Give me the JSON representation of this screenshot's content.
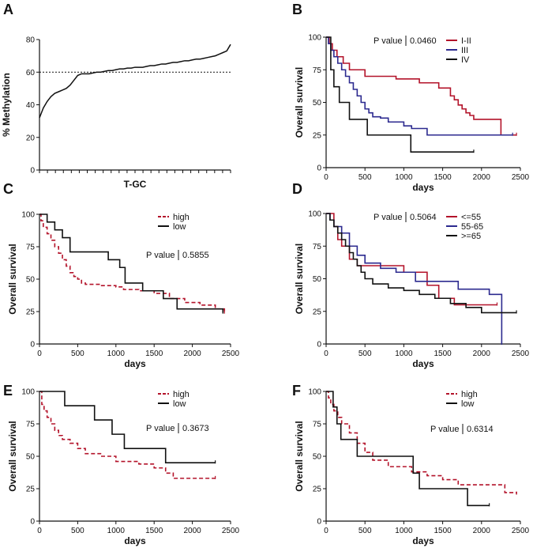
{
  "chart_data": [
    {
      "panel": "A",
      "type": "line",
      "xlabel": "T-GC",
      "ylabel": "% Methylation",
      "ylim": [
        0,
        80
      ],
      "yticks": [
        0,
        20,
        40,
        60,
        80
      ],
      "reference_line": 60,
      "x": [
        0,
        2,
        4,
        6,
        8,
        10,
        12,
        14,
        16,
        18,
        20,
        22,
        24,
        26,
        28,
        30,
        32,
        34,
        36,
        38,
        40,
        42,
        44,
        46,
        48,
        50,
        52,
        54,
        56,
        58,
        60,
        62,
        64,
        66,
        68,
        70,
        72,
        74,
        76,
        78,
        80,
        82,
        84,
        86,
        88,
        90,
        92,
        94,
        96,
        98,
        100
      ],
      "values": [
        32,
        38,
        42,
        45,
        47,
        48,
        49,
        50,
        52,
        55,
        58,
        59,
        59,
        59,
        59.5,
        60,
        60,
        60.5,
        61,
        61,
        61.5,
        62,
        62,
        62.5,
        62.5,
        63,
        63,
        63,
        63.5,
        64,
        64,
        64.5,
        65,
        65,
        65.5,
        66,
        66,
        66.5,
        67,
        67,
        67.5,
        68,
        68,
        68.5,
        69,
        69.5,
        70,
        71,
        72,
        73,
        77
      ]
    },
    {
      "panel": "B",
      "type": "line",
      "xlabel": "days",
      "ylabel": "Overall survival",
      "xlim": [
        0,
        2500
      ],
      "ylim": [
        0,
        100
      ],
      "xticks": [
        0,
        500,
        1000,
        1500,
        2000,
        2500
      ],
      "yticks": [
        0,
        25,
        50,
        75,
        100
      ],
      "p_label": "P value",
      "p_value": "0.0460",
      "series": [
        {
          "name": "I-II",
          "color": "#b3132a",
          "dash": false,
          "x": [
            0,
            40,
            80,
            140,
            220,
            300,
            500,
            900,
            1200,
            1450,
            1600,
            1650,
            1700,
            1750,
            1800,
            1850,
            1900,
            2050,
            2250,
            2450
          ],
          "y": [
            100,
            95,
            90,
            85,
            80,
            75,
            70,
            68,
            65,
            61,
            55,
            52,
            48,
            45,
            42,
            40,
            37,
            37,
            25,
            25
          ]
        },
        {
          "name": "III",
          "color": "#2c2a8f",
          "dash": false,
          "x": [
            0,
            30,
            60,
            100,
            150,
            200,
            250,
            300,
            350,
            400,
            450,
            500,
            550,
            600,
            700,
            800,
            1000,
            1100,
            1300,
            1500,
            2400
          ],
          "y": [
            100,
            95,
            90,
            85,
            80,
            75,
            70,
            65,
            60,
            55,
            50,
            45,
            42,
            39,
            38,
            35,
            32,
            30,
            25,
            25,
            25
          ]
        },
        {
          "name": "IV",
          "color": "#111111",
          "dash": false,
          "x": [
            0,
            60,
            100,
            170,
            300,
            530,
            1090,
            1900
          ],
          "y": [
            100,
            75,
            62,
            50,
            37,
            25,
            12,
            12
          ]
        }
      ]
    },
    {
      "panel": "C",
      "type": "line",
      "xlabel": "days",
      "ylabel": "Overall survival",
      "xlim": [
        0,
        2500
      ],
      "ylim": [
        0,
        100
      ],
      "xticks": [
        0,
        500,
        1000,
        1500,
        2000,
        2500
      ],
      "yticks": [
        0,
        25,
        50,
        75,
        100
      ],
      "p_label": "P value",
      "p_value": "0.5855",
      "series": [
        {
          "name": "high",
          "color": "#b3132a",
          "dash": true,
          "x": [
            0,
            20,
            50,
            100,
            150,
            200,
            250,
            300,
            350,
            400,
            450,
            500,
            550,
            600,
            700,
            800,
            1000,
            1100,
            1300,
            1500,
            1700,
            1900,
            2100,
            2300,
            2420
          ],
          "y": [
            100,
            95,
            90,
            85,
            80,
            75,
            70,
            65,
            60,
            55,
            52,
            50,
            47,
            46,
            46,
            45,
            44,
            42,
            41,
            39,
            35,
            32,
            30,
            27,
            24
          ]
        },
        {
          "name": "low",
          "color": "#111111",
          "dash": false,
          "x": [
            0,
            100,
            200,
            300,
            400,
            700,
            900,
            1050,
            1120,
            1350,
            1620,
            1800,
            2400
          ],
          "y": [
            100,
            94,
            88,
            82,
            71,
            71,
            65,
            59,
            47,
            41,
            35,
            27,
            24
          ]
        }
      ]
    },
    {
      "panel": "D",
      "type": "line",
      "xlabel": "days",
      "ylabel": "Overall survival",
      "xlim": [
        0,
        2500
      ],
      "ylim": [
        0,
        100
      ],
      "xticks": [
        0,
        500,
        1000,
        1500,
        2000,
        2500
      ],
      "yticks": [
        0,
        25,
        50,
        75,
        100
      ],
      "p_label": "P value",
      "p_value": "0.5064",
      "series": [
        {
          "name": "<=55",
          "color": "#b3132a",
          "dash": false,
          "x": [
            0,
            100,
            150,
            200,
            300,
            400,
            700,
            1000,
            1300,
            1450,
            1650,
            2200
          ],
          "y": [
            100,
            90,
            80,
            75,
            65,
            60,
            60,
            55,
            45,
            35,
            30,
            30
          ]
        },
        {
          "name": "55-65",
          "color": "#2c2a8f",
          "dash": false,
          "x": [
            0,
            50,
            100,
            200,
            300,
            400,
            500,
            700,
            900,
            1150,
            1700,
            2100,
            2250,
            2260
          ],
          "y": [
            100,
            95,
            90,
            85,
            75,
            68,
            62,
            58,
            55,
            48,
            42,
            38,
            38,
            0
          ]
        },
        {
          "name": ">=65",
          "color": "#111111",
          "dash": false,
          "x": [
            0,
            50,
            100,
            150,
            200,
            250,
            300,
            350,
            400,
            450,
            500,
            600,
            800,
            1000,
            1200,
            1400,
            1600,
            1800,
            2000,
            2450
          ],
          "y": [
            100,
            95,
            90,
            85,
            80,
            75,
            70,
            65,
            60,
            55,
            50,
            46,
            43,
            41,
            38,
            35,
            31,
            28,
            24,
            24
          ]
        }
      ]
    },
    {
      "panel": "E",
      "type": "line",
      "xlabel": "days",
      "ylabel": "Overall survival",
      "xlim": [
        0,
        2500
      ],
      "ylim": [
        0,
        100
      ],
      "xticks": [
        0,
        500,
        1000,
        1500,
        2000,
        2500
      ],
      "yticks": [
        0,
        25,
        50,
        75,
        100
      ],
      "p_label": "P value",
      "p_value": "0.3673",
      "series": [
        {
          "name": "high",
          "color": "#b3132a",
          "dash": true,
          "x": [
            0,
            30,
            60,
            100,
            150,
            200,
            250,
            300,
            400,
            500,
            600,
            800,
            1000,
            1300,
            1500,
            1650,
            1750,
            2300
          ],
          "y": [
            100,
            90,
            85,
            80,
            75,
            70,
            66,
            63,
            60,
            56,
            52,
            50,
            46,
            44,
            41,
            37,
            33,
            33
          ]
        },
        {
          "name": "low",
          "color": "#111111",
          "dash": false,
          "x": [
            0,
            330,
            720,
            950,
            1110,
            1650,
            2300
          ],
          "y": [
            100,
            89,
            78,
            67,
            56,
            45,
            45
          ]
        }
      ]
    },
    {
      "panel": "F",
      "type": "line",
      "xlabel": "days",
      "ylabel": "Overall survival",
      "xlim": [
        0,
        2500
      ],
      "ylim": [
        0,
        100
      ],
      "xticks": [
        0,
        500,
        1000,
        1500,
        2000,
        2500
      ],
      "yticks": [
        0,
        25,
        50,
        75,
        100
      ],
      "p_label": "P value",
      "p_value": "0.6314",
      "series": [
        {
          "name": "high",
          "color": "#b3132a",
          "dash": true,
          "x": [
            0,
            30,
            60,
            100,
            150,
            200,
            300,
            400,
            500,
            600,
            800,
            1100,
            1300,
            1500,
            1700,
            2000,
            2300,
            2450
          ],
          "y": [
            100,
            95,
            90,
            85,
            80,
            75,
            68,
            60,
            53,
            47,
            42,
            38,
            35,
            32,
            28,
            28,
            22,
            21
          ]
        },
        {
          "name": "low",
          "color": "#111111",
          "dash": false,
          "x": [
            0,
            90,
            140,
            190,
            400,
            1120,
            1200,
            1820,
            2100
          ],
          "y": [
            100,
            88,
            75,
            63,
            50,
            37,
            25,
            12,
            12
          ]
        }
      ]
    }
  ]
}
